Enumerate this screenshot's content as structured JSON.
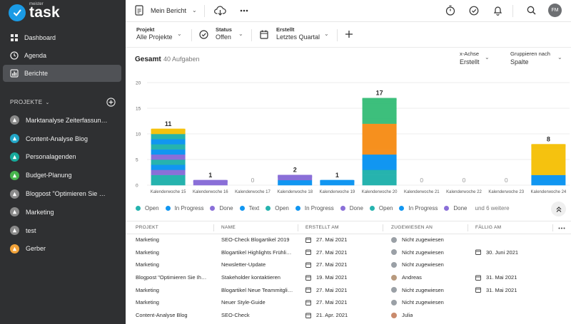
{
  "app": {
    "logo_small": "meister",
    "logo_big": "task"
  },
  "nav": [
    {
      "label": "Dashboard",
      "icon": "dashboard-icon"
    },
    {
      "label": "Agenda",
      "icon": "agenda-icon"
    },
    {
      "label": "Berichte",
      "icon": "reports-icon"
    }
  ],
  "projects_header": {
    "label": "PROJEKTE"
  },
  "projects": [
    {
      "label": "Marktanalyse Zeiterfassun…",
      "color": "#8a8a8a"
    },
    {
      "label": "Content-Analyse Blog",
      "color": "#22a6c7"
    },
    {
      "label": "Personalagenden",
      "color": "#17a99b"
    },
    {
      "label": "Budget-Planung",
      "color": "#47b54d"
    },
    {
      "label": "Blogpost \"Optimieren Sie …",
      "color": "#8a8a8a"
    },
    {
      "label": "Marketing",
      "color": "#8a8a8a"
    },
    {
      "label": "test",
      "color": "#8a8a8a"
    },
    {
      "label": "Gerber",
      "color": "#f2a33a"
    }
  ],
  "topbar": {
    "report_name": "Mein Bericht",
    "avatar": "FM"
  },
  "filters": [
    {
      "label": "Projekt",
      "value": "Alle Projekte"
    },
    {
      "label": "Status",
      "value": "Offen"
    },
    {
      "label": "Erstellt",
      "value": "Letztes Quartal"
    }
  ],
  "chart_header": {
    "title": "Gesamt",
    "count": "40 Aufgaben",
    "xaxis_label": "x-Achse",
    "xaxis_value": "Erstellt",
    "group_label": "Gruppieren nach",
    "group_value": "Spalte"
  },
  "chart_data": {
    "type": "bar",
    "stacked": true,
    "title": "Gesamt",
    "ylim": [
      0,
      20
    ],
    "yticks": [
      0,
      5,
      10,
      15,
      20
    ],
    "categories": [
      "Kalenderwoche 15",
      "Kalenderwoche 16",
      "Kalenderwoche 17",
      "Kalenderwoche 18",
      "Kalenderwoche 19",
      "Kalenderwoche 20",
      "Kalenderwoche 21",
      "Kalenderwoche 22",
      "Kalenderwoche 23",
      "Kalenderwoche 24"
    ],
    "totals": [
      "11",
      "1",
      "0",
      "2",
      "1",
      "17",
      "0",
      "0",
      "0",
      "8"
    ],
    "series_colors": {
      "yellow": "#f5c20f",
      "teal": "#26b3ae",
      "blue": "#1196f1",
      "purple": "#8a6fd8",
      "green": "#3dbf7c",
      "orange": "#f6901e"
    },
    "stacks": [
      [
        "teal",
        "teal",
        "purple",
        "blue",
        "teal",
        "purple",
        "blue",
        "teal",
        "blue",
        "teal",
        "yellow"
      ],
      [
        "purple"
      ],
      [],
      [
        "blue",
        "purple"
      ],
      [
        "blue"
      ],
      [
        "teal",
        "teal",
        "teal",
        "blue",
        "blue",
        "blue",
        "orange",
        "orange",
        "orange",
        "orange",
        "orange",
        "orange",
        "green",
        "green",
        "green",
        "green",
        "green"
      ],
      [],
      [],
      [],
      [
        "blue",
        "blue",
        "yellow",
        "yellow",
        "yellow",
        "yellow",
        "yellow",
        "yellow"
      ]
    ]
  },
  "legend": {
    "items": [
      {
        "label": "Open",
        "color": "#26b3ae"
      },
      {
        "label": "In Progress",
        "color": "#1196f1"
      },
      {
        "label": "Done",
        "color": "#8a6fd8"
      },
      {
        "label": "Text",
        "color": "#1196f1"
      },
      {
        "label": "Open",
        "color": "#26b3ae"
      },
      {
        "label": "In Progress",
        "color": "#1196f1"
      },
      {
        "label": "Done",
        "color": "#8a6fd8"
      },
      {
        "label": "Open",
        "color": "#26b3ae"
      },
      {
        "label": "In Progress",
        "color": "#1196f1"
      },
      {
        "label": "Done",
        "color": "#8a6fd8"
      }
    ],
    "more": "und 6 weitere"
  },
  "table": {
    "headers": {
      "project": "PROJEKT",
      "name": "NAME",
      "created": "ERSTELLT AM",
      "assigned": "ZUGEWIESEN AN",
      "due": "FÄLLIG AM"
    },
    "rows": [
      {
        "project": "Marketing",
        "name": "SEO-Check Blogartikel 2019",
        "created": "27. Mai 2021",
        "assigned": "Nicht zugewiesen",
        "due": "",
        "avatar": "#9aa0a6"
      },
      {
        "project": "Marketing",
        "name": "Blogartikel Highlights Frühli…",
        "created": "27. Mai 2021",
        "assigned": "Nicht zugewiesen",
        "due": "30. Juni 2021",
        "avatar": "#9aa0a6"
      },
      {
        "project": "Marketing",
        "name": "Newsletter-Update",
        "created": "27. Mai 2021",
        "assigned": "Nicht zugewiesen",
        "due": "",
        "avatar": "#9aa0a6"
      },
      {
        "project": "Blogpost \"Optimieren Sie Ih…",
        "name": "Stakeholder kontaktieren",
        "created": "19. Mai 2021",
        "assigned": "Andreas",
        "due": "31. Mai 2021",
        "avatar": "#b89a7e"
      },
      {
        "project": "Marketing",
        "name": "Blogartikel Neue Teammitgli…",
        "created": "27. Mai 2021",
        "assigned": "Nicht zugewiesen",
        "due": "31. Mai 2021",
        "avatar": "#9aa0a6"
      },
      {
        "project": "Marketing",
        "name": "Neuer Style-Guide",
        "created": "27. Mai 2021",
        "assigned": "Nicht zugewiesen",
        "due": "",
        "avatar": "#9aa0a6"
      },
      {
        "project": "Content-Analyse Blog",
        "name": "SEO-Check",
        "created": "21. Apr. 2021",
        "assigned": "Julia",
        "due": "",
        "avatar": "#c98a6c"
      }
    ]
  }
}
